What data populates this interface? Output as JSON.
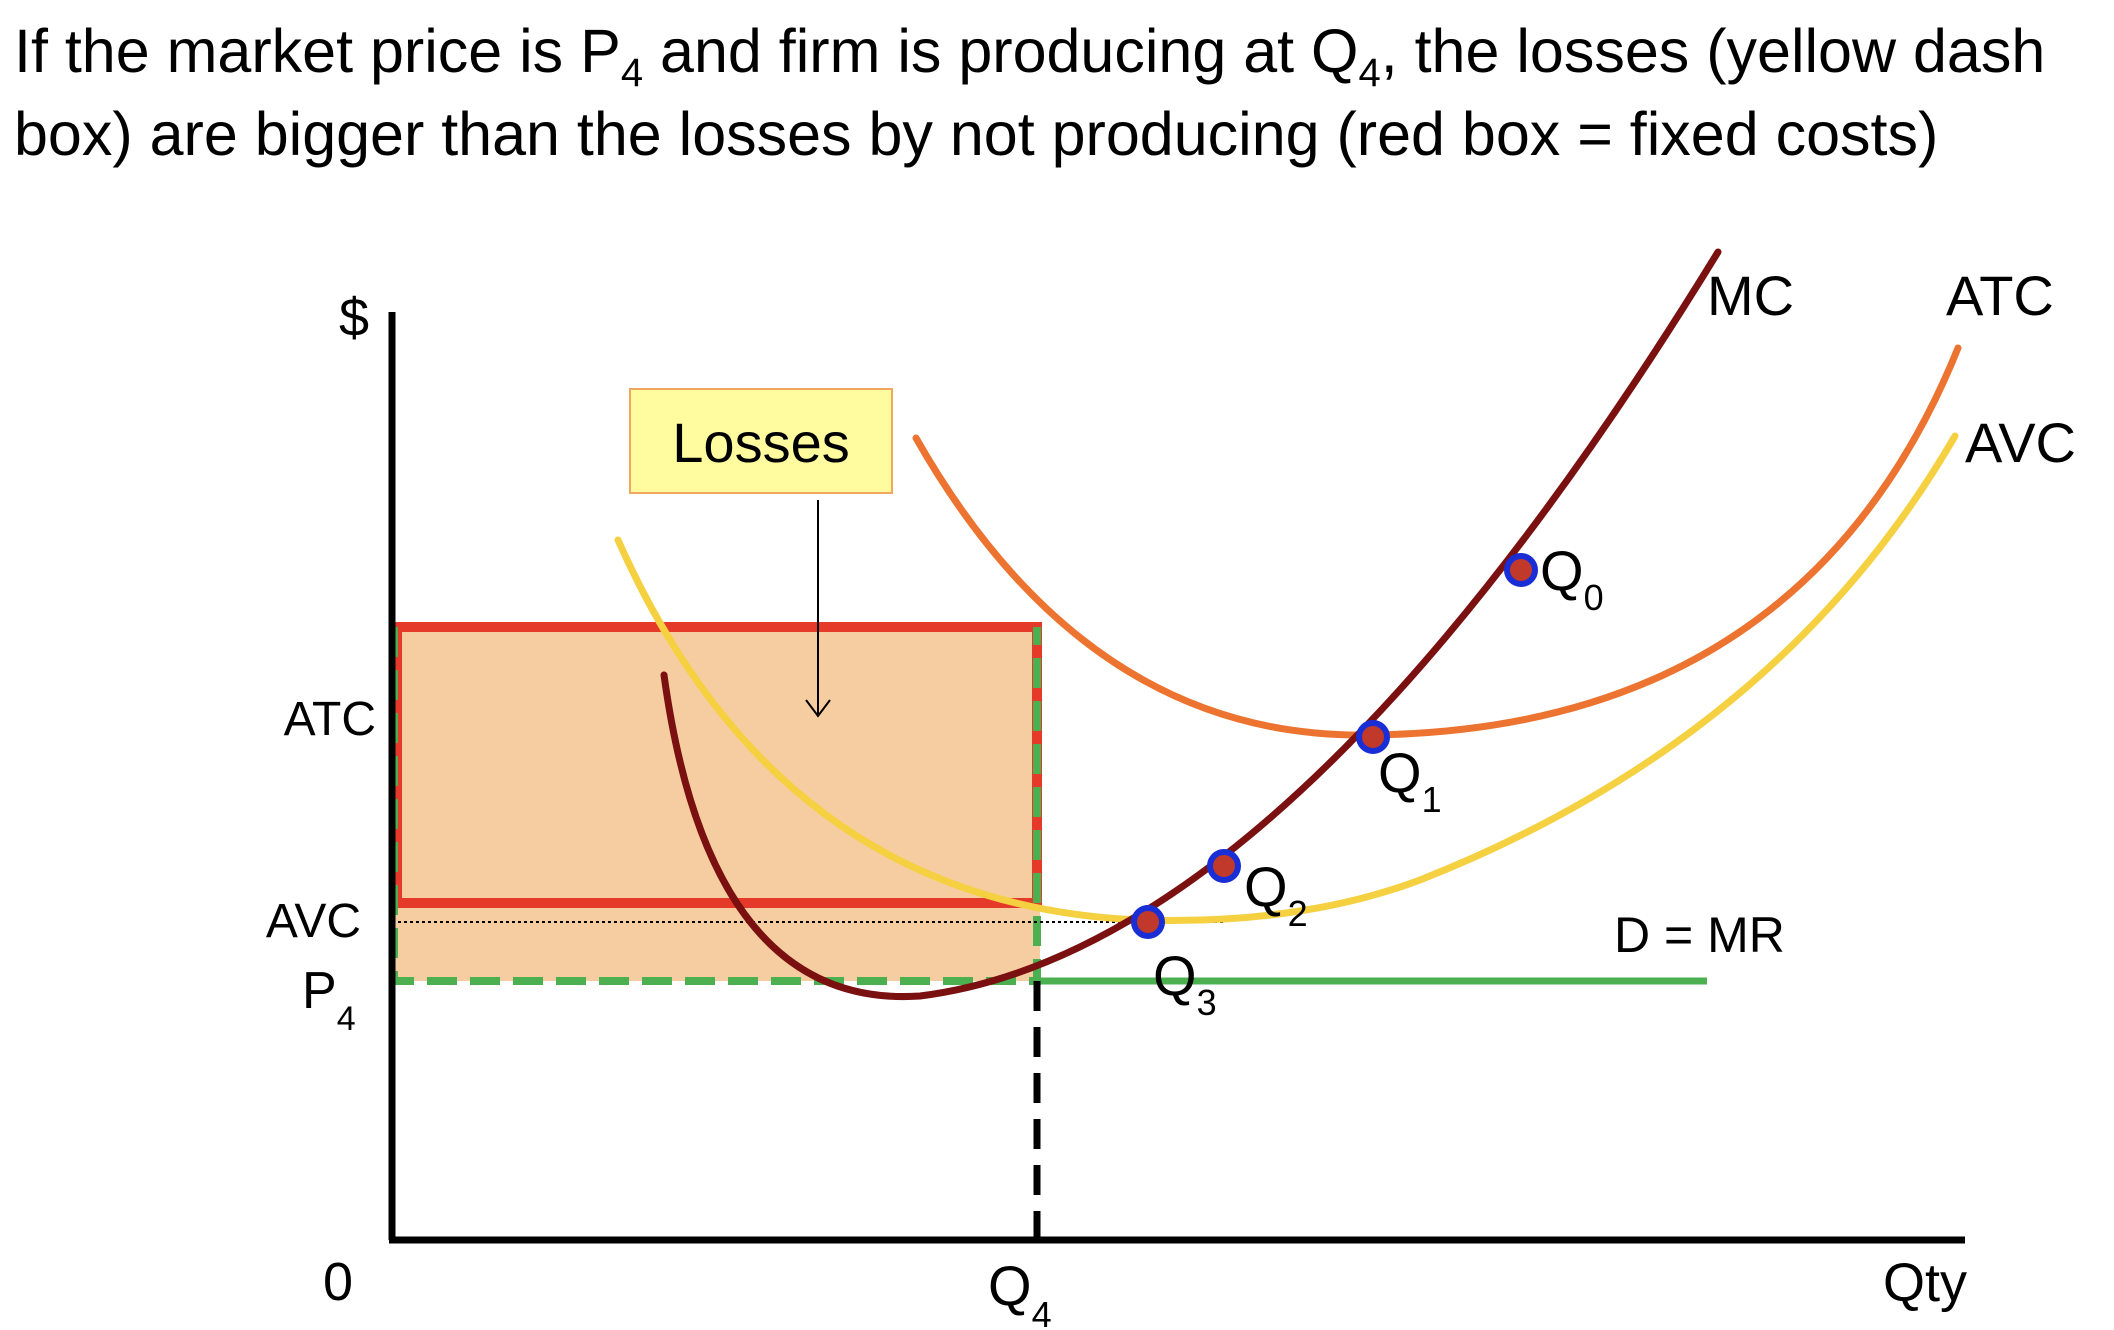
{
  "title": {
    "part1": "If the market price is P",
    "p_sub": "4",
    "part2": " and firm is producing at Q",
    "q_sub": "4",
    "part3": ", the losses (yellow dash box) are bigger than the losses by not producing (red box = fixed costs)"
  },
  "axes": {
    "y_label": "$",
    "x_label": "Qty",
    "origin_label": "0",
    "y_ticks": {
      "atc": "ATC",
      "avc": "AVC",
      "p4_main": "P",
      "p4_sub": "4"
    },
    "x_ticks": {
      "q4_main": "Q",
      "q4_sub": "4"
    }
  },
  "curves": {
    "mc": {
      "label": "MC",
      "color": "#7a1010"
    },
    "atc": {
      "label": "ATC",
      "color": "#ec7430"
    },
    "avc": {
      "label": "AVC",
      "color": "#f5d040"
    },
    "demand": {
      "label": "D = MR",
      "color": "#4caf50"
    }
  },
  "points": {
    "q0": {
      "main": "Q",
      "sub": "0"
    },
    "q1": {
      "main": "Q",
      "sub": "1"
    },
    "q2": {
      "main": "Q",
      "sub": "2"
    },
    "q3": {
      "main": "Q",
      "sub": "3"
    }
  },
  "callout": {
    "label": "Losses",
    "fill": "#fffb9e",
    "border": "#f0a860"
  },
  "colors": {
    "fixed_cost_box": "#e53a2a",
    "loss_fill": "#f6cda0",
    "point_fill": "#c0392b",
    "point_ring": "#1a2ed6",
    "axis": "#000000"
  }
}
